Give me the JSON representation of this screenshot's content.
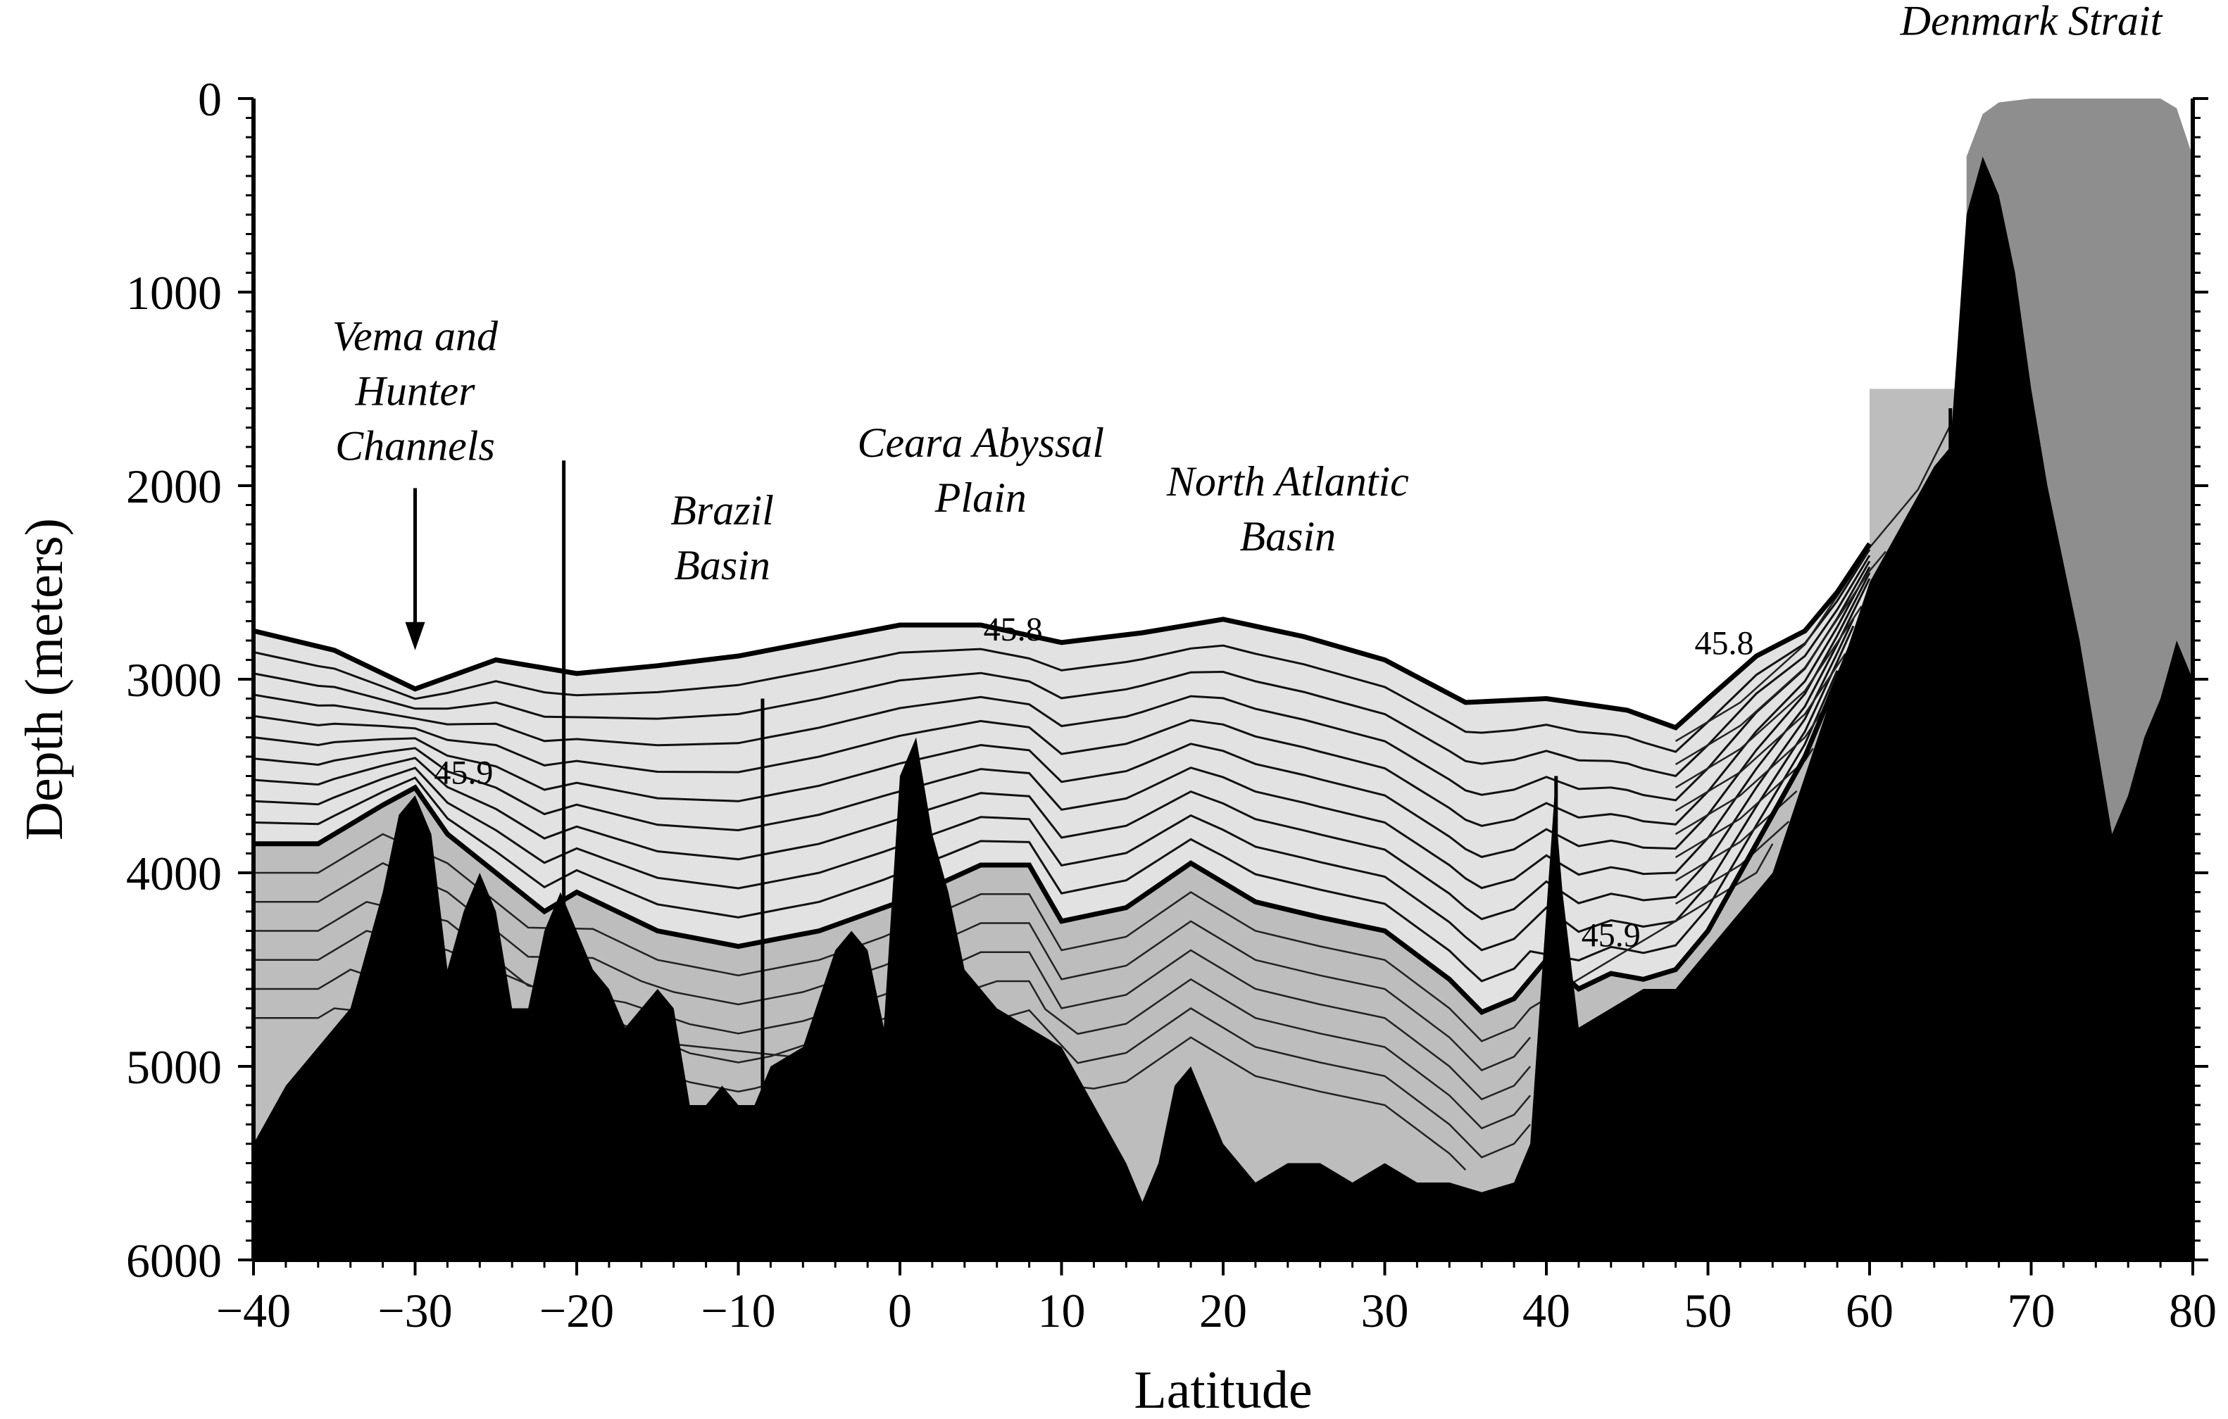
{
  "chart_data": {
    "type": "section",
    "title": "",
    "xlabel": "Latitude",
    "ylabel": "Depth (meters)",
    "xlim": [
      -40,
      80
    ],
    "ylim": [
      0,
      6000
    ],
    "y_inverted": true,
    "x_ticks": [
      -40,
      -30,
      -20,
      -10,
      0,
      10,
      20,
      30,
      40,
      50,
      60,
      70,
      80
    ],
    "x_tick_labels": [
      "−40",
      "−30",
      "−20",
      "−10",
      "0",
      "10",
      "20",
      "30",
      "40",
      "50",
      "60",
      "70",
      "80"
    ],
    "y_ticks": [
      0,
      1000,
      2000,
      3000,
      4000,
      5000,
      6000
    ],
    "y_tick_labels": [
      "0",
      "1000",
      "2000",
      "3000",
      "4000",
      "5000",
      "6000"
    ],
    "annotations": [
      {
        "lines": [
          "Vema and",
          "Hunter",
          "Channels"
        ],
        "x": -30,
        "y": 1300,
        "arrow_to": [
          -30,
          2850
        ]
      },
      {
        "lines": [
          "Brazil",
          "Basin"
        ],
        "x": -11,
        "y": 2200
      },
      {
        "lines": [
          "Ceara Abyssal",
          "Plain"
        ],
        "x": 5,
        "y": 1850
      },
      {
        "lines": [
          "North Atlantic",
          "Basin"
        ],
        "x": 24,
        "y": 2050
      },
      {
        "lines": [
          "Denmark Strait"
        ],
        "x": 70,
        "y": -330
      }
    ],
    "contour_labels": [
      {
        "text": "45.8",
        "x": 7,
        "y": 2800
      },
      {
        "text": "45.8",
        "x": 51,
        "y": 2870
      },
      {
        "text": "45.9",
        "x": -27,
        "y": 3540
      },
      {
        "text": "45.9",
        "x": 44,
        "y": 4380
      }
    ],
    "bottom_topography": {
      "lat": [
        -40,
        -38,
        -36,
        -34,
        -32,
        -31,
        -30,
        -29,
        -28,
        -27,
        -26,
        -25,
        -24,
        -23,
        -22,
        -21,
        -20,
        -19,
        -18,
        -17,
        -16,
        -15,
        -14,
        -13,
        -12,
        -11,
        -10,
        -9,
        -8,
        -6,
        -4,
        -3,
        -2,
        -1,
        0,
        1,
        2,
        3,
        4,
        6,
        8,
        10,
        12,
        14,
        15,
        16,
        17,
        18,
        19,
        20,
        22,
        24,
        26,
        28,
        30,
        32,
        34,
        36,
        38,
        39,
        40,
        40.5,
        41,
        42,
        44,
        46,
        48,
        50,
        52,
        54,
        56,
        58,
        60,
        62,
        64,
        65,
        66,
        67,
        68,
        69,
        70,
        71,
        72,
        73,
        74,
        75,
        76,
        77,
        78,
        79,
        80
      ],
      "depth": [
        5400,
        5100,
        4900,
        4700,
        4100,
        3700,
        3600,
        3800,
        4500,
        4200,
        4000,
        4200,
        4700,
        4700,
        4300,
        4100,
        4300,
        4500,
        4600,
        4800,
        4700,
        4600,
        4700,
        5200,
        5200,
        5100,
        5200,
        5200,
        5000,
        4900,
        4400,
        4300,
        4400,
        4800,
        3500,
        3300,
        3800,
        4100,
        4500,
        4700,
        4800,
        4900,
        5200,
        5500,
        5700,
        5500,
        5100,
        5000,
        5200,
        5400,
        5600,
        5500,
        5500,
        5600,
        5500,
        5600,
        5600,
        5650,
        5600,
        5400,
        4200,
        3600,
        4100,
        4800,
        4700,
        4600,
        4600,
        4400,
        4200,
        4000,
        3500,
        3000,
        2500,
        2200,
        1900,
        1800,
        600,
        300,
        500,
        900,
        1500,
        2000,
        2400,
        2800,
        3300,
        3800,
        3600,
        3300,
        3100,
        2800,
        3000
      ]
    },
    "water_mass_boundaries": [
      {
        "name": "contour_45.8",
        "lat": [
          -40,
          -35,
          -30,
          -25,
          -20,
          -15,
          -10,
          -5,
          0,
          5,
          10,
          15,
          20,
          25,
          30,
          35,
          40,
          45,
          48,
          50,
          53,
          56,
          58,
          60
        ],
        "depth": [
          2750,
          2850,
          3050,
          2900,
          2970,
          2930,
          2880,
          2800,
          2720,
          2720,
          2810,
          2760,
          2690,
          2780,
          2900,
          3120,
          3100,
          3160,
          3250,
          3100,
          2880,
          2750,
          2550,
          2300
        ]
      },
      {
        "name": "contour_45.9",
        "lat": [
          -40,
          -36,
          -32,
          -30,
          -28,
          -25,
          -22,
          -20,
          -15,
          -10,
          -5,
          0,
          5,
          8,
          10,
          14,
          18,
          22,
          26,
          30,
          34,
          36,
          38,
          40,
          42,
          44,
          46,
          48,
          50,
          52,
          54,
          56,
          58,
          60
        ],
        "depth": [
          3850,
          3850,
          3650,
          3560,
          3800,
          4000,
          4200,
          4100,
          4300,
          4380,
          4300,
          4150,
          3960,
          3960,
          4250,
          4180,
          3950,
          4150,
          4230,
          4300,
          4550,
          4720,
          4650,
          4450,
          4600,
          4520,
          4550,
          4500,
          4300,
          4000,
          3700,
          3400,
          3000,
          2600
        ]
      }
    ],
    "shading_levels": [
      "light grey (upper deep water)",
      "mid grey (bottom water)",
      "dark grey (Denmark Strait overflow)",
      "black (bottom topography)"
    ]
  }
}
